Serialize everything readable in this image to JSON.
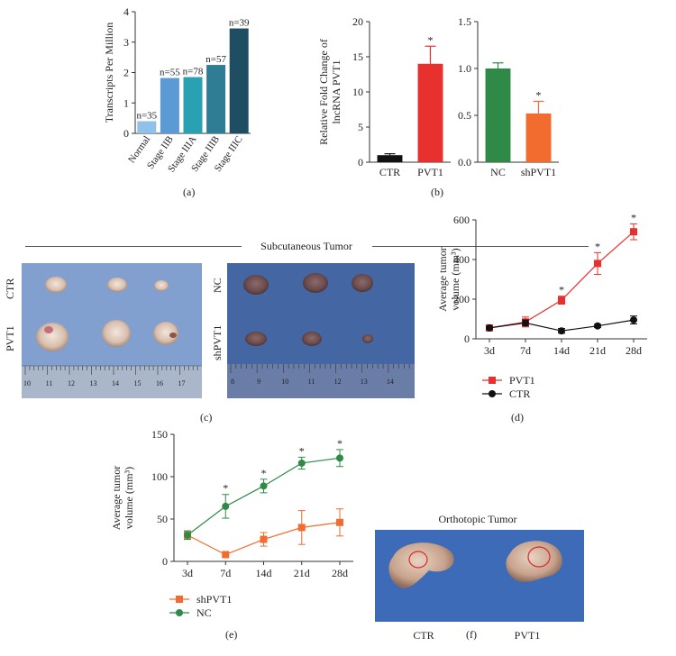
{
  "panel_labels": {
    "a": "(a)",
    "b": "(b)",
    "c": "(c)",
    "d": "(d)",
    "e": "(e)",
    "f": "(f)"
  },
  "chart_data": [
    {
      "id": "a",
      "type": "bar",
      "ylabel": "Transcripts Per Million",
      "categories": [
        "Normal",
        "Stage IIB",
        "Stage IIIA",
        "Stage IIIB",
        "Stage IIIC"
      ],
      "values": [
        0.4,
        1.82,
        1.85,
        2.25,
        3.45
      ],
      "annotations": [
        "n=35",
        "n=55",
        "n=78",
        "n=57",
        "n=39"
      ],
      "colors": [
        "#8fc1ea",
        "#5b9bd5",
        "#2aa0b3",
        "#2e7d94",
        "#1f4e63"
      ],
      "ylim": [
        0,
        4
      ],
      "yticks": [
        "0",
        "1",
        "2",
        "3",
        "4"
      ]
    },
    {
      "id": "b1",
      "type": "bar",
      "ylabel": "Relative Fold Change of lncRNA PVT1",
      "categories": [
        "CTR",
        "PVT1"
      ],
      "values": [
        1,
        14
      ],
      "errors": [
        0.2,
        2.5
      ],
      "colors": [
        "#111111",
        "#e8302e"
      ],
      "significance": [
        "",
        "*"
      ],
      "ylim": [
        0,
        20
      ],
      "yticks": [
        "0",
        "5",
        "10",
        "15",
        "20"
      ]
    },
    {
      "id": "b2",
      "type": "bar",
      "categories": [
        "NC",
        "shPVT1"
      ],
      "values": [
        1.0,
        0.52
      ],
      "errors": [
        0.06,
        0.13
      ],
      "colors": [
        "#2f8a47",
        "#f26b2f"
      ],
      "significance": [
        "",
        "*"
      ],
      "ylim": [
        0,
        1.5
      ],
      "yticks": [
        "0.0",
        "0.5",
        "1.0",
        "1.5"
      ]
    },
    {
      "id": "d",
      "type": "line",
      "ylabel": "Average tumor volume (mm³)",
      "ylabel_lines": [
        "Average tumor",
        "volume (mm³)"
      ],
      "categories": [
        "3d",
        "7d",
        "14d",
        "21d",
        "28d"
      ],
      "ylim": [
        0,
        600
      ],
      "yticks": [
        "0",
        "200",
        "400",
        "600"
      ],
      "significance": [
        "",
        "",
        "*",
        "*",
        "*"
      ],
      "series": [
        {
          "name": "PVT1",
          "color": "#e8302e",
          "marker": "square",
          "values": [
            55,
            85,
            195,
            380,
            540
          ],
          "errors": [
            8,
            25,
            20,
            55,
            40
          ]
        },
        {
          "name": "CTR",
          "color": "#111111",
          "marker": "circle",
          "values": [
            55,
            80,
            40,
            65,
            95
          ],
          "errors": [
            6,
            15,
            12,
            8,
            20
          ]
        }
      ]
    },
    {
      "id": "e",
      "type": "line",
      "ylabel": "Average tumor volume (mm³)",
      "ylabel_lines": [
        "Average tumor",
        "volume (mm³)"
      ],
      "categories": [
        "3d",
        "7d",
        "14d",
        "21d",
        "28d"
      ],
      "ylim": [
        0,
        150
      ],
      "yticks": [
        "0",
        "50",
        "100",
        "150"
      ],
      "significance": [
        "",
        "*",
        "*",
        "*",
        "*"
      ],
      "series": [
        {
          "name": "shPVT1",
          "color": "#f26b2f",
          "marker": "square",
          "values": [
            31,
            8,
            26,
            40,
            46
          ],
          "errors": [
            5,
            2,
            8,
            20,
            16
          ]
        },
        {
          "name": "NC",
          "color": "#2f8a47",
          "marker": "circle",
          "values": [
            31,
            65,
            89,
            116,
            122
          ],
          "errors": [
            5,
            14,
            8,
            7,
            10
          ]
        }
      ]
    }
  ],
  "photo_c": {
    "title": "Subcutaneous Tumor",
    "left_row_labels": [
      "CTR",
      "PVT1"
    ],
    "right_row_labels": [
      "NC",
      "shPVT1"
    ],
    "ruler_left": [
      "10",
      "11",
      "12",
      "13",
      "14",
      "15",
      "16",
      "17"
    ],
    "ruler_right": [
      "8",
      "9",
      "10",
      "11",
      "12",
      "13",
      "14"
    ]
  },
  "photo_f": {
    "title": "Orthotopic Tumor",
    "labels": [
      "CTR",
      "PVT1"
    ]
  }
}
